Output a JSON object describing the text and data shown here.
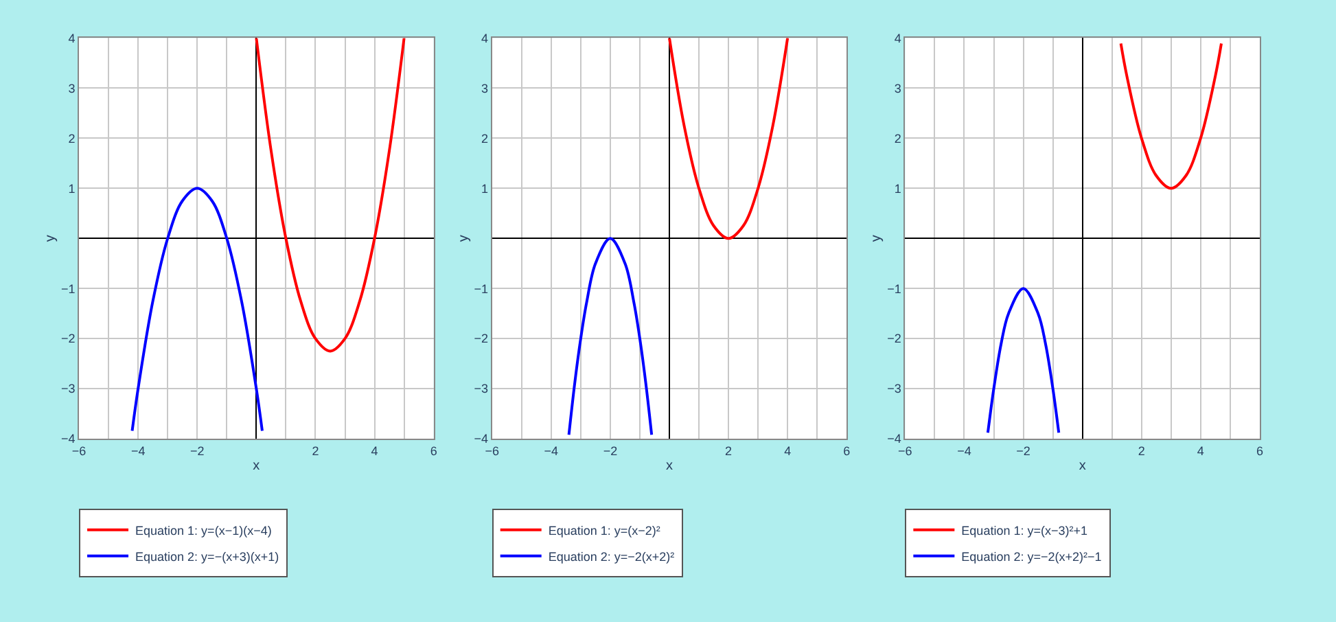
{
  "chart_data": [
    {
      "type": "line",
      "xlabel": "x",
      "ylabel": "y",
      "xlim": [
        -6,
        6
      ],
      "ylim": [
        -4,
        4
      ],
      "grid": true,
      "legend": "bottom",
      "marker": "none",
      "line_style": "solid",
      "xticks": [
        -6,
        {
          "value": -5,
          "label": null
        },
        -4,
        {
          "value": -3,
          "label": null
        },
        -2,
        {
          "value": -1,
          "label": null
        },
        {
          "value": 0,
          "label": null
        },
        {
          "value": 1,
          "label": null
        },
        2,
        {
          "value": 3,
          "label": null
        },
        4,
        {
          "value": 5,
          "label": null
        },
        6
      ],
      "yticks": [
        -4,
        -3,
        -2,
        -1,
        1,
        2,
        3,
        4
      ],
      "series": [
        {
          "name": "Equation 1: y=(x−1)(x−4)",
          "color": "#ff0000",
          "x": [
            0,
            0.5,
            1,
            1.5,
            2,
            2.5,
            3,
            3.5,
            4,
            4.5,
            5
          ],
          "values": [
            4,
            1.75,
            0,
            -1.25,
            -2,
            -2.25,
            -2,
            -1.25,
            0,
            1.75,
            4
          ]
        },
        {
          "name": "Equation 2: y=−(x+3)(x+1)",
          "color": "#0000ff",
          "x": [
            -4.2,
            -4,
            -3.5,
            -3,
            -2.5,
            -2,
            -1.5,
            -1,
            -0.5,
            0,
            0.2
          ],
          "values": [
            -3.84,
            -3,
            -1.25,
            0,
            0.75,
            1,
            0.75,
            0,
            -1.25,
            -3,
            -3.84
          ]
        }
      ]
    },
    {
      "type": "line",
      "xlabel": "x",
      "ylabel": "y",
      "xlim": [
        -6,
        6
      ],
      "ylim": [
        -4,
        4
      ],
      "grid": true,
      "legend": "bottom",
      "marker": "none",
      "line_style": "solid",
      "xticks": [
        -6,
        {
          "value": -5,
          "label": null
        },
        -4,
        {
          "value": -3,
          "label": null
        },
        -2,
        {
          "value": -1,
          "label": null
        },
        {
          "value": 0,
          "label": null
        },
        {
          "value": 1,
          "label": null
        },
        2,
        {
          "value": 3,
          "label": null
        },
        4,
        {
          "value": 5,
          "label": null
        },
        6
      ],
      "yticks": [
        -4,
        -3,
        -2,
        -1,
        1,
        2,
        3,
        4
      ],
      "series": [
        {
          "name": "Equation 1: y=(x−2)²",
          "color": "#ff0000",
          "x": [
            0,
            0.5,
            1,
            1.5,
            2,
            2.5,
            3,
            3.5,
            4
          ],
          "values": [
            4,
            2.25,
            1,
            0.25,
            0,
            0.25,
            1,
            2.25,
            4
          ]
        },
        {
          "name": "Equation 2: y=−2(x+2)²",
          "color": "#0000ff",
          "x": [
            -3.4,
            -3.2,
            -3,
            -2.8,
            -2.5,
            -2,
            -1.5,
            -1.2,
            -1,
            -0.8,
            -0.6
          ],
          "values": [
            -3.92,
            -2.88,
            -2,
            -1.28,
            -0.5,
            0,
            -0.5,
            -1.28,
            -2,
            -2.88,
            -3.92
          ]
        }
      ]
    },
    {
      "type": "line",
      "xlabel": "x",
      "ylabel": "y",
      "xlim": [
        -6,
        6
      ],
      "ylim": [
        -4,
        4
      ],
      "grid": true,
      "legend": "bottom",
      "marker": "none",
      "line_style": "solid",
      "xticks": [
        -6,
        {
          "value": -5,
          "label": null
        },
        -4,
        {
          "value": -3,
          "label": null
        },
        -2,
        {
          "value": -1,
          "label": null
        },
        {
          "value": 0,
          "label": null
        },
        {
          "value": 1,
          "label": null
        },
        2,
        {
          "value": 3,
          "label": null
        },
        4,
        {
          "value": 5,
          "label": null
        },
        6
      ],
      "yticks": [
        -4,
        -3,
        -2,
        -1,
        1,
        2,
        3,
        4
      ],
      "series": [
        {
          "name": "Equation 1: y=(x−3)²+1",
          "color": "#ff0000",
          "x": [
            1.3,
            1.5,
            2,
            2.5,
            3,
            3.5,
            4,
            4.5,
            4.7
          ],
          "values": [
            3.89,
            3.25,
            2,
            1.25,
            1,
            1.25,
            2,
            3.25,
            3.89
          ]
        },
        {
          "name": "Equation 2: y=−2(x+2)²−1",
          "color": "#0000ff",
          "x": [
            -3.2,
            -3,
            -2.75,
            -2.5,
            -2,
            -1.5,
            -1.25,
            -1,
            -0.8
          ],
          "values": [
            -3.88,
            -3,
            -2.1,
            -1.5,
            -1,
            -1.5,
            -2.1,
            -3,
            -3.88
          ]
        }
      ]
    }
  ]
}
